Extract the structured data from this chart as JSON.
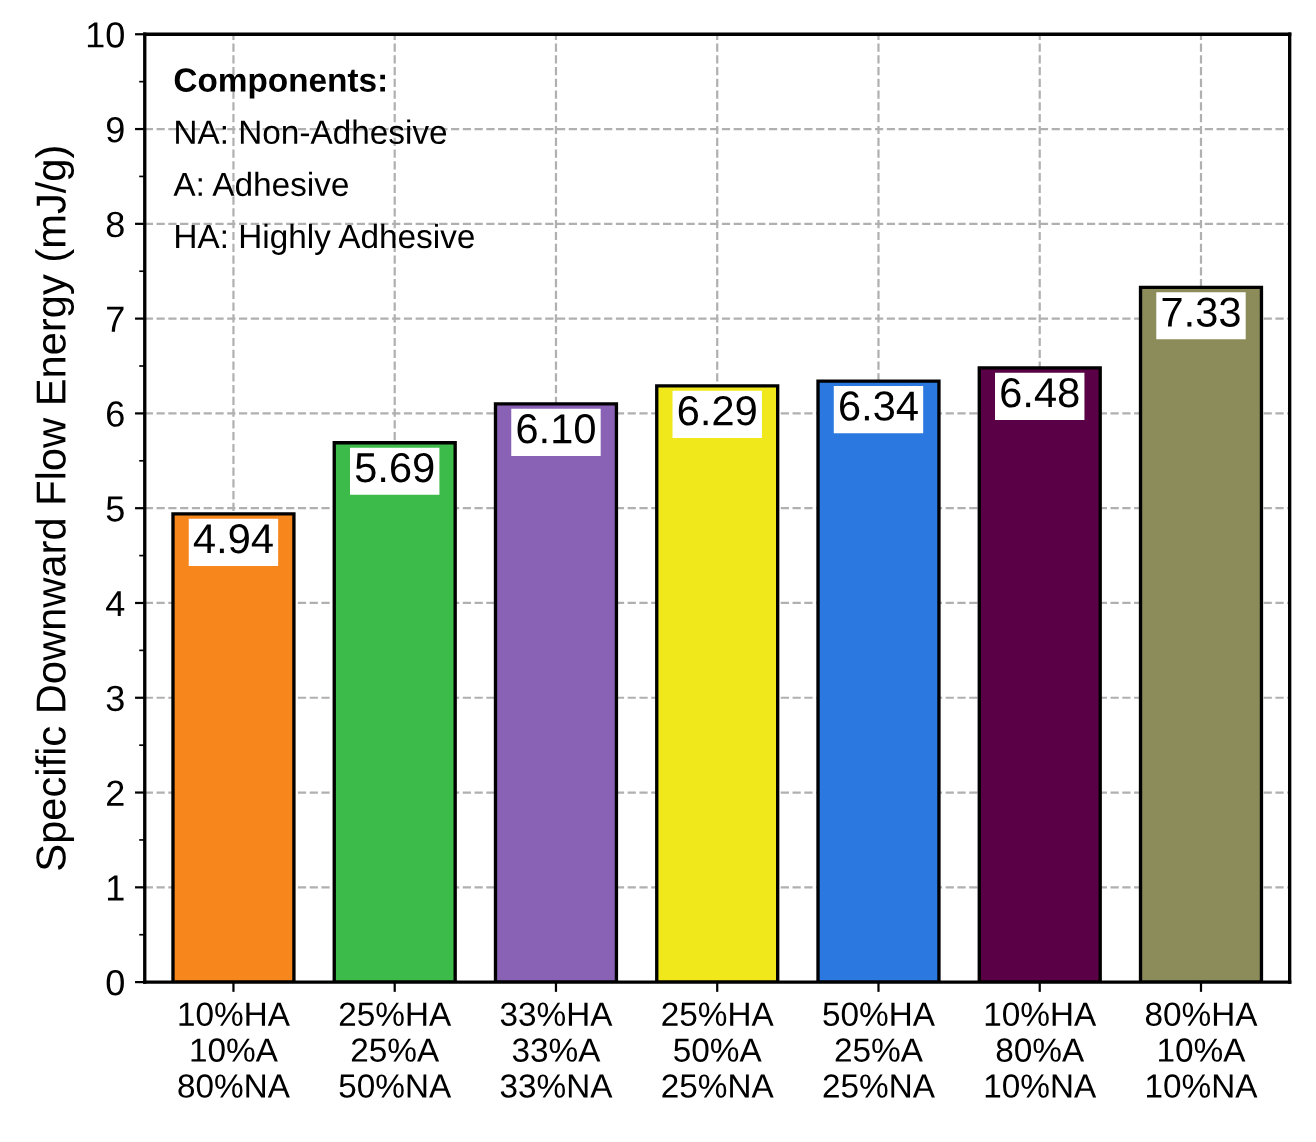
{
  "chart_data": {
    "type": "bar",
    "ylabel": "Specific Downward Flow Energy (mJ/g)",
    "categories": [
      "10%HA\n10%A\n80%NA",
      "25%HA\n25%A\n50%NA",
      "33%HA\n33%A\n33%NA",
      "25%HA\n50%A\n25%NA",
      "50%HA\n25%A\n25%NA",
      "10%HA\n80%A\n10%NA",
      "80%HA\n10%A\n10%NA"
    ],
    "values": [
      4.94,
      5.69,
      6.1,
      6.29,
      6.34,
      6.48,
      7.33
    ],
    "value_labels": [
      "4.94",
      "5.69",
      "6.10",
      "6.29",
      "6.34",
      "6.48",
      "7.33"
    ],
    "colors": [
      "#f7861c",
      "#3dbb4a",
      "#8a62b5",
      "#f0e81a",
      "#2a78e0",
      "#5a0046",
      "#8c8c5a"
    ],
    "ylim": [
      0,
      10
    ],
    "yticks": [
      0,
      1,
      2,
      3,
      4,
      5,
      6,
      7,
      8,
      9,
      10
    ],
    "grid": true,
    "annotations": [
      "Components:",
      "NA: Non-Adhesive",
      "A: Adhesive",
      "HA: Highly Adhesive"
    ]
  }
}
